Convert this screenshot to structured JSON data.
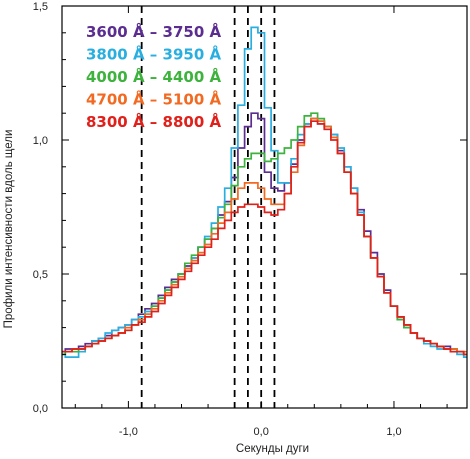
{
  "chart_data": {
    "type": "line",
    "xlabel": "Секунды дуги",
    "ylabel": "Профили интенсивности вдоль щели",
    "xlim": [
      -1.5,
      1.55
    ],
    "ylim": [
      0.0,
      1.5
    ],
    "xticks": [
      -1.0,
      0.0,
      1.0
    ],
    "xtick_labels": [
      "-1,0",
      "0,0",
      "1,0"
    ],
    "yticks": [
      0.0,
      0.5,
      1.0,
      1.5
    ],
    "ytick_labels": [
      "0,0",
      "0,5",
      "1,0",
      "1,5"
    ],
    "grid": false,
    "legend_position": "top-left",
    "vlines": [
      -0.9,
      -0.2,
      -0.1,
      0.0,
      0.1
    ],
    "x": [
      -1.5,
      -1.45,
      -1.4,
      -1.35,
      -1.3,
      -1.25,
      -1.2,
      -1.15,
      -1.1,
      -1.05,
      -1.0,
      -0.95,
      -0.9,
      -0.85,
      -0.8,
      -0.75,
      -0.7,
      -0.65,
      -0.6,
      -0.55,
      -0.5,
      -0.45,
      -0.4,
      -0.35,
      -0.3,
      -0.25,
      -0.2,
      -0.15,
      -0.1,
      -0.05,
      0.0,
      0.05,
      0.1,
      0.15,
      0.2,
      0.25,
      0.3,
      0.35,
      0.4,
      0.45,
      0.5,
      0.55,
      0.6,
      0.65,
      0.7,
      0.75,
      0.8,
      0.85,
      0.9,
      0.95,
      1.0,
      1.05,
      1.1,
      1.15,
      1.2,
      1.25,
      1.3,
      1.35,
      1.4,
      1.45,
      1.5,
      1.55
    ],
    "series": [
      {
        "name": "3600 Å – 3750 Å",
        "color": "#5b2d91",
        "values": [
          0.21,
          0.22,
          0.22,
          0.23,
          0.24,
          0.25,
          0.26,
          0.27,
          0.29,
          0.3,
          0.31,
          0.33,
          0.35,
          0.37,
          0.39,
          0.42,
          0.45,
          0.48,
          0.5,
          0.53,
          0.56,
          0.6,
          0.63,
          0.67,
          0.72,
          0.77,
          0.86,
          0.97,
          1.05,
          1.1,
          1.08,
          0.88,
          0.82,
          0.81,
          0.84,
          0.91,
          1.0,
          1.06,
          1.08,
          1.07,
          1.05,
          1.02,
          0.96,
          0.9,
          0.82,
          0.74,
          0.66,
          0.58,
          0.5,
          0.44,
          0.38,
          0.34,
          0.31,
          0.28,
          0.26,
          0.25,
          0.24,
          0.23,
          0.23,
          0.22,
          0.21,
          0.2
        ]
      },
      {
        "name": "3800 Å – 3950 Å",
        "color": "#29aee0",
        "values": [
          0.2,
          0.19,
          0.19,
          0.21,
          0.23,
          0.25,
          0.26,
          0.28,
          0.29,
          0.3,
          0.31,
          0.33,
          0.34,
          0.36,
          0.38,
          0.41,
          0.44,
          0.47,
          0.5,
          0.52,
          0.56,
          0.6,
          0.64,
          0.69,
          0.75,
          0.82,
          0.97,
          1.13,
          1.34,
          1.42,
          1.4,
          1.12,
          0.96,
          0.84,
          0.84,
          0.93,
          1.02,
          1.06,
          1.07,
          1.06,
          1.04,
          1.02,
          0.97,
          0.9,
          0.82,
          0.73,
          0.64,
          0.56,
          0.49,
          0.43,
          0.38,
          0.33,
          0.3,
          0.28,
          0.26,
          0.24,
          0.23,
          0.22,
          0.22,
          0.21,
          0.2,
          0.19
        ]
      },
      {
        "name": "4000 Å – 4400 Å",
        "color": "#3db23d",
        "values": [
          0.2,
          0.21,
          0.21,
          0.22,
          0.23,
          0.24,
          0.25,
          0.26,
          0.27,
          0.28,
          0.29,
          0.31,
          0.33,
          0.35,
          0.38,
          0.41,
          0.44,
          0.47,
          0.5,
          0.54,
          0.57,
          0.6,
          0.63,
          0.67,
          0.71,
          0.76,
          0.83,
          0.9,
          0.93,
          0.95,
          0.95,
          0.92,
          0.93,
          0.95,
          0.97,
          1.0,
          1.05,
          1.09,
          1.1,
          1.08,
          1.05,
          1.01,
          0.95,
          0.88,
          0.8,
          0.72,
          0.64,
          0.56,
          0.49,
          0.43,
          0.38,
          0.33,
          0.3,
          0.28,
          0.26,
          0.25,
          0.24,
          0.23,
          0.22,
          0.22,
          0.21,
          0.2
        ]
      },
      {
        "name": "4700 Å – 5100 Å",
        "color": "#f26a21",
        "values": [
          0.21,
          0.21,
          0.22,
          0.22,
          0.23,
          0.24,
          0.25,
          0.26,
          0.27,
          0.28,
          0.3,
          0.31,
          0.33,
          0.35,
          0.37,
          0.4,
          0.43,
          0.46,
          0.49,
          0.52,
          0.55,
          0.58,
          0.61,
          0.65,
          0.69,
          0.73,
          0.78,
          0.82,
          0.84,
          0.84,
          0.82,
          0.78,
          0.76,
          0.76,
          0.8,
          0.88,
          0.98,
          1.05,
          1.08,
          1.07,
          1.05,
          1.01,
          0.95,
          0.88,
          0.8,
          0.72,
          0.64,
          0.56,
          0.49,
          0.43,
          0.38,
          0.34,
          0.31,
          0.28,
          0.26,
          0.25,
          0.24,
          0.23,
          0.22,
          0.22,
          0.21,
          0.21
        ]
      },
      {
        "name": "8300 Å – 8800 Å",
        "color": "#e0201b",
        "values": [
          0.21,
          0.21,
          0.22,
          0.22,
          0.23,
          0.24,
          0.25,
          0.26,
          0.27,
          0.28,
          0.29,
          0.31,
          0.32,
          0.34,
          0.36,
          0.39,
          0.42,
          0.45,
          0.48,
          0.51,
          0.54,
          0.57,
          0.6,
          0.63,
          0.67,
          0.7,
          0.73,
          0.75,
          0.76,
          0.76,
          0.75,
          0.73,
          0.72,
          0.74,
          0.8,
          0.9,
          0.99,
          1.05,
          1.07,
          1.06,
          1.04,
          1.0,
          0.95,
          0.88,
          0.8,
          0.72,
          0.64,
          0.56,
          0.49,
          0.43,
          0.38,
          0.34,
          0.31,
          0.28,
          0.26,
          0.25,
          0.24,
          0.23,
          0.22,
          0.21,
          0.21,
          0.2
        ]
      }
    ]
  }
}
